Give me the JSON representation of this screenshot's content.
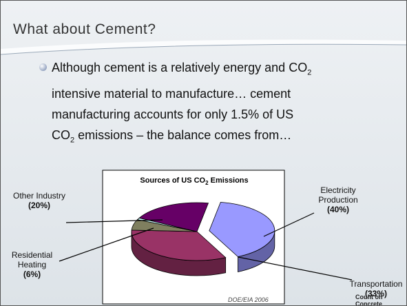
{
  "slide": {
    "title": "What about Cement?",
    "bullet": [
      "Although cement is a relatively energy and CO",
      "2",
      " intensive material to manufacture… cement manufacturing accounts for only 1.5% of US CO",
      "2",
      " emissions – the balance comes from…"
    ],
    "logo": "Count on Concrete"
  },
  "chart_data": {
    "type": "pie",
    "title_parts": [
      "Sources of US CO",
      "2",
      " Emissions"
    ],
    "categories": [
      "Electricity Production",
      "Transportation",
      "Residential Heating",
      null,
      "Other Industry"
    ],
    "values": [
      40,
      33,
      6,
      1,
      20
    ],
    "value_labels": [
      "(40%)",
      "(33%)",
      "(6%)",
      null,
      "(20%)"
    ],
    "colors": [
      "#9999ff",
      "#993366",
      "#7f7f5f",
      "#ccffff",
      "#660066"
    ],
    "source": "DOE/EIA 2006"
  }
}
